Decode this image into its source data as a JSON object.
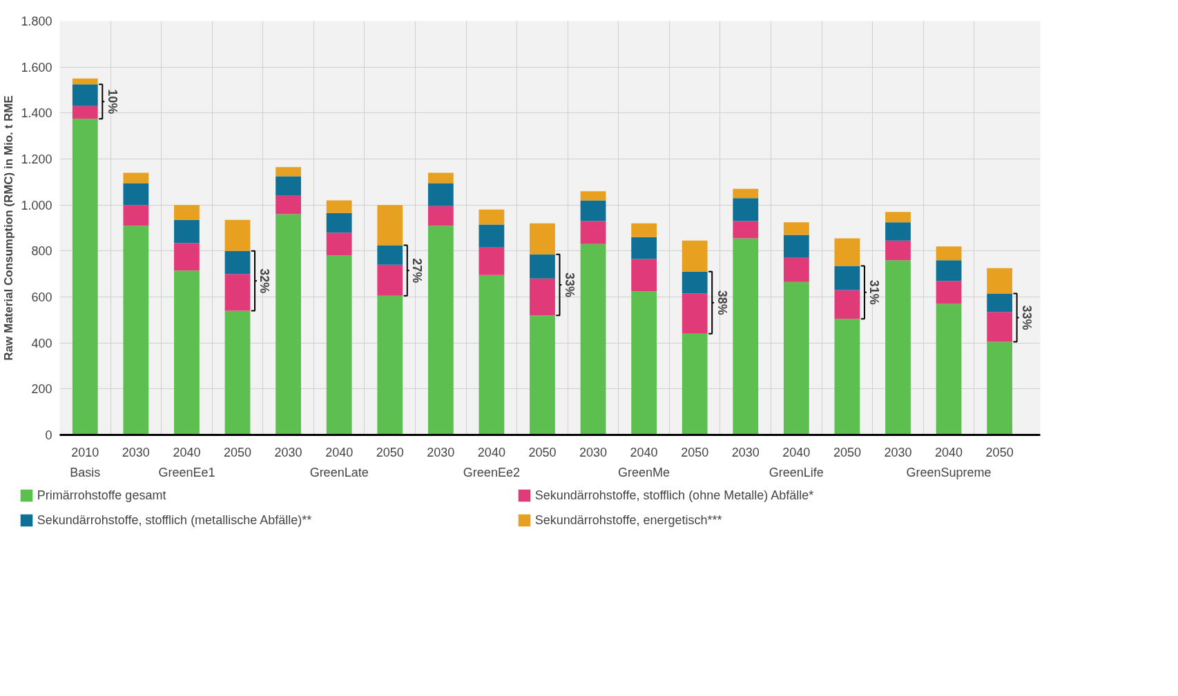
{
  "chart_data": {
    "type": "bar",
    "stacked": true,
    "ylabel": "Raw Material Consumption (RMC) in Mio. t RME",
    "categories": [
      "2010",
      "2030",
      "2040",
      "2050",
      "2030",
      "2040",
      "2050",
      "2030",
      "2040",
      "2050",
      "2030",
      "2040",
      "2050",
      "2030",
      "2040",
      "2050",
      "2030",
      "2040",
      "2050"
    ],
    "series": [
      {
        "name": "Primärrohstoffe gesamt",
        "color": "#5cbf4f",
        "values": [
          1375,
          910,
          715,
          540,
          960,
          780,
          605,
          910,
          695,
          520,
          830,
          625,
          440,
          855,
          665,
          505,
          760,
          570,
          405
        ]
      },
      {
        "name": "Sekundärrohstoffe, stofflich (ohne Metalle) Abfälle*",
        "color": "#e03a78",
        "values": [
          55,
          90,
          120,
          160,
          80,
          100,
          135,
          85,
          120,
          160,
          100,
          140,
          175,
          75,
          105,
          125,
          85,
          100,
          130
        ]
      },
      {
        "name": "Sekundärrohstoffe, stofflich (metallische Abfälle)**",
        "color": "#0f6f94",
        "values": [
          95,
          95,
          100,
          100,
          85,
          85,
          85,
          100,
          100,
          105,
          90,
          95,
          95,
          100,
          100,
          105,
          80,
          90,
          80
        ]
      },
      {
        "name": "Sekundärrohstoffe, energetisch***",
        "color": "#e8a020",
        "values": [
          25,
          45,
          65,
          135,
          40,
          55,
          175,
          45,
          65,
          135,
          40,
          60,
          135,
          40,
          55,
          120,
          45,
          60,
          110
        ]
      }
    ],
    "ylim": [
      0,
      1800
    ],
    "yticks": [
      0,
      200,
      400,
      600,
      800,
      {
        "value": 1000,
        "label": "1.000"
      },
      {
        "value": 1200,
        "label": "1.200"
      },
      {
        "value": 1400,
        "label": "1.400"
      },
      {
        "value": 1600,
        "label": "1.600"
      },
      {
        "value": 1800,
        "label": "1.800"
      }
    ],
    "grid": true,
    "legend": "bottom",
    "annotations": [
      "Basis",
      "GreenEe1",
      "GreenLate",
      "GreenEe2",
      "GreenMe",
      "GreenLife",
      "GreenSupreme",
      "10%",
      "32%",
      "27%",
      "33%",
      "38%",
      "31%",
      "33%"
    ]
  }
}
